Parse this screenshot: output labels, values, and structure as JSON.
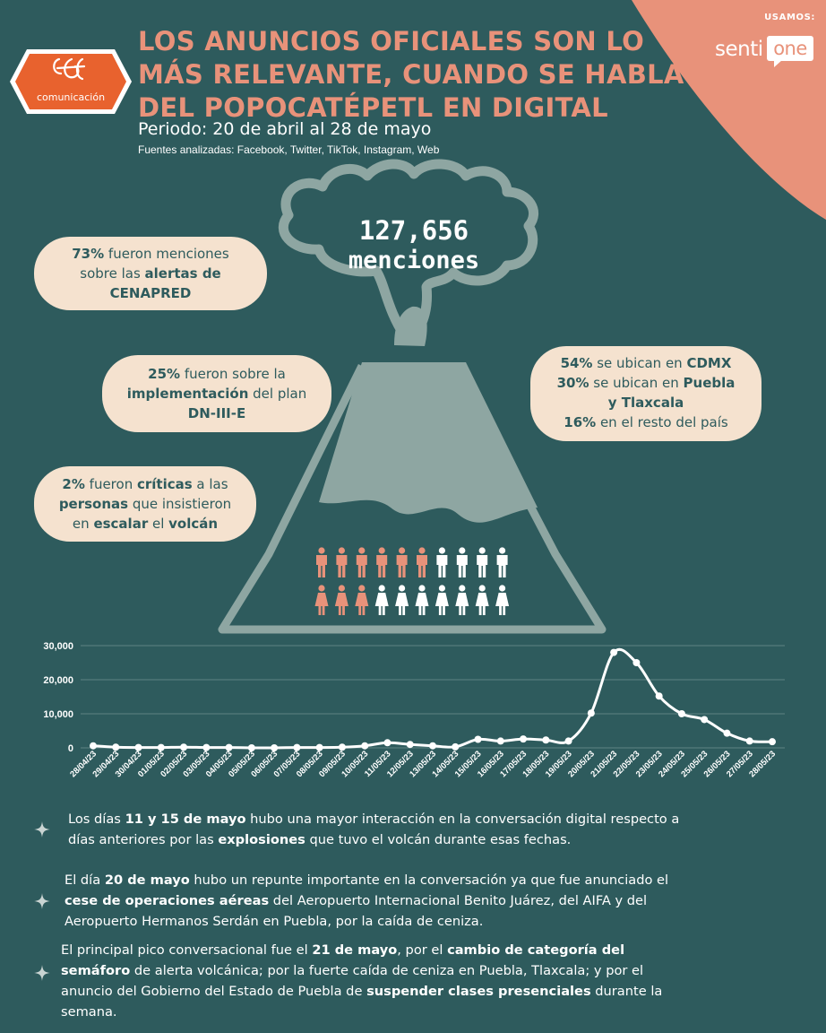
{
  "brand": {
    "logo_text": "comunicación",
    "usamos": "USAMOS:",
    "sentione_a": "senti",
    "sentione_b": "one"
  },
  "header": {
    "title_lines": [
      "LOS ANUNCIOS OFICIALES SON LO",
      "MÁS RELEVANTE, CUANDO SE HABLA",
      "DEL POPOCATÉPETL EN DIGITAL"
    ],
    "periodo": "Periodo: 20 de abril al 28 de mayo",
    "fuentes": "Fuentes analizadas: Facebook, Twitter, TikTok, Instagram, Web"
  },
  "total": {
    "value": "127,656",
    "label": "menciones"
  },
  "stats": {
    "alertas": {
      "pct": "73%",
      "t1": " fueron menciones",
      "t2": "sobre las ",
      "b2": "alertas de",
      "b3": "CENAPRED"
    },
    "plan": {
      "pct": "25%",
      "t1": " fueron sobre la",
      "b2": "implementación",
      "t2": " del plan",
      "b3": "DN-III-E"
    },
    "criticas": {
      "pct": "2%",
      "t1": " fueron ",
      "b1": "críticas",
      "t1b": " a las",
      "b2": "personas",
      "t2": " que insistieron",
      "t3a": "en ",
      "b3": "escalar",
      "t3b": " el ",
      "b3b": "volcán"
    },
    "ubicacion": {
      "l1_pct": "54%",
      "l1_t": " se ubican en ",
      "l1_b": "CDMX",
      "l2_pct": "30%",
      "l2_t": " se ubican en ",
      "l2_b": "Puebla",
      "l3_b": "y Tlaxcala",
      "l4_pct": "16%",
      "l4_t": " en el resto del país"
    }
  },
  "people": {
    "row1_highlighted": 6,
    "row2_highlighted": 3,
    "per_row": 10,
    "highlight_color": "#e8927a",
    "base_color": "#ffffff"
  },
  "colors": {
    "background": "#2e5b5d",
    "accent": "#e8927a",
    "volcano": "#8ea6a2",
    "pill": "#f5e2cf"
  },
  "chart_data": {
    "type": "line",
    "title": "",
    "xlabel": "",
    "ylabel": "",
    "ylim": [
      0,
      30000
    ],
    "yticks": [
      "30,000",
      "20,000",
      "10,000",
      "0"
    ],
    "ytick_values": [
      30000,
      20000,
      10000,
      0
    ],
    "grid": true,
    "legend": "none",
    "x": [
      "28/04/23",
      "29/04/23",
      "30/04/23",
      "01/05/23",
      "02/05/23",
      "03/05/23",
      "04/05/23",
      "05/05/23",
      "06/05/23",
      "07/05/23",
      "08/05/23",
      "09/05/23",
      "10/05/23",
      "11/05/23",
      "12/05/23",
      "13/05/23",
      "14/05/23",
      "15/05/23",
      "16/05/23",
      "17/05/23",
      "18/05/23",
      "19/05/23",
      "20/05/23",
      "21/05/23",
      "22/05/23",
      "23/05/23",
      "24/05/23",
      "25/05/23",
      "26/05/23",
      "27/05/23",
      "28/05/23"
    ],
    "series": [
      {
        "values": [
          600,
          200,
          100,
          100,
          200,
          100,
          100,
          0,
          0,
          100,
          100,
          200,
          600,
          1500,
          1000,
          600,
          300,
          2500,
          2000,
          2600,
          2300,
          2000,
          10200,
          28000,
          25000,
          15200,
          10000,
          8300,
          4300,
          2000,
          1800
        ]
      }
    ]
  },
  "notes": [
    {
      "a": "Los días ",
      "b": "11 y 15 de mayo",
      "c": " hubo una mayor interacción en la conversación digital respecto a",
      "d": "días anteriores por las ",
      "e": "explosiones",
      "f": " que tuvo el volcán durante esas fechas."
    },
    {
      "a": "El día ",
      "b": "20 de mayo",
      "c": " hubo un repunte importante en la conversación ya que fue anunciado el",
      "d": "cese de operaciones aéreas",
      "e": " del Aeropuerto Internacional Benito Juárez, del AIFA y del",
      "f": "Aeropuerto Hermanos Serdán en Puebla, por la caída de ceniza."
    },
    {
      "a": "El principal pico conversacional fue el ",
      "b": "21 de mayo",
      "c": ", por el ",
      "d": "cambio de categoría del",
      "e": "semáforo",
      "f": " de alerta volcánica; por la fuerte caída de ceniza en Puebla, Tlaxcala; y por el",
      "g": "anuncio del Gobierno del Estado de Puebla de ",
      "h": "suspender clases presenciales",
      "i": " durante la",
      "j": "semana."
    }
  ]
}
